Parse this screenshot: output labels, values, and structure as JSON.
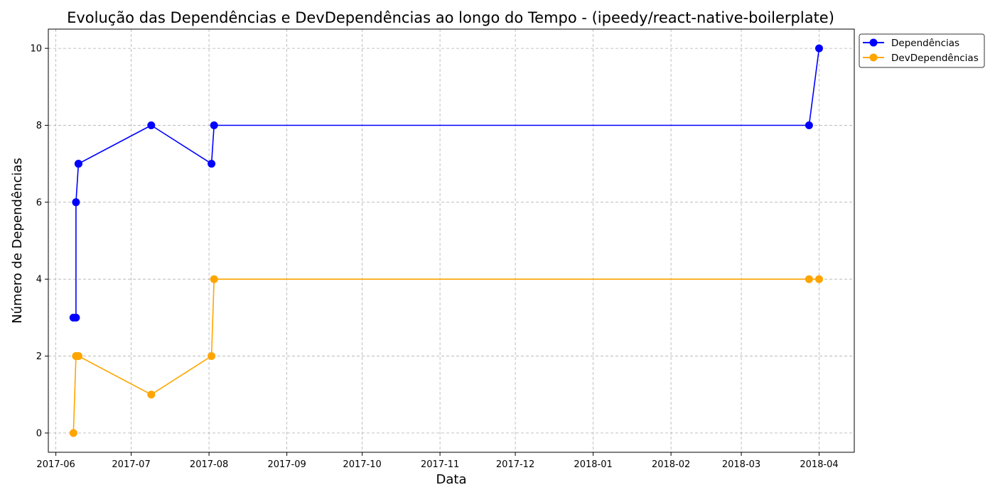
{
  "chart_data": {
    "type": "line",
    "title": "Evolução das Dependências e DevDependências ao longo do Tempo - (ipeedy/react-native-boilerplate)",
    "xlabel": "Data",
    "ylabel": "Número de Dependências",
    "grid": true,
    "legend_position": "outside-top-right",
    "x_ticks": [
      "2017-06",
      "2017-07",
      "2017-08",
      "2017-09",
      "2017-10",
      "2017-11",
      "2017-12",
      "2018-01",
      "2018-02",
      "2018-03",
      "2018-04"
    ],
    "x_ticks_dates": [
      "2017-06-01",
      "2017-07-01",
      "2017-08-01",
      "2017-09-01",
      "2017-10-01",
      "2017-11-01",
      "2017-12-01",
      "2018-01-01",
      "2018-02-01",
      "2018-03-01",
      "2018-04-01"
    ],
    "y_ticks": [
      0,
      2,
      4,
      6,
      8,
      10
    ],
    "xlim": [
      "2017-05-29",
      "2018-04-15"
    ],
    "ylim": [
      -0.5,
      10.5
    ],
    "x": [
      "2017-06-08",
      "2017-06-09",
      "2017-06-09",
      "2017-06-10",
      "2017-06-10",
      "2017-07-09",
      "2017-08-02",
      "2017-08-03",
      "2018-03-28",
      "2018-04-01"
    ],
    "series": [
      {
        "name": "Dependências",
        "color": "#0000ff",
        "values": [
          3,
          3,
          6,
          7,
          7,
          8,
          7,
          8,
          8,
          10
        ]
      },
      {
        "name": "DevDependências",
        "color": "#ffa500",
        "values": [
          0,
          2,
          2,
          2,
          2,
          1,
          2,
          4,
          4,
          4
        ]
      }
    ]
  }
}
